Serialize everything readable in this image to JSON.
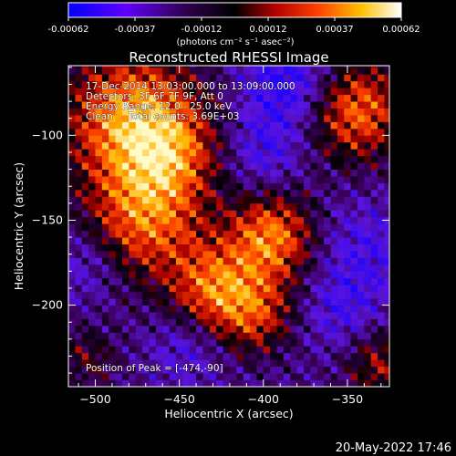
{
  "colorbar": {
    "ticks": [
      "-0.00062",
      "-0.00037",
      "-0.00012",
      "0.00012",
      "0.00037",
      "0.00062"
    ],
    "unit_label": "(photons cm⁻² s⁻¹ asec⁻²)"
  },
  "chart_data": {
    "type": "heatmap",
    "title": "Reconstructed RHESSI Image",
    "xlabel": "Heliocentric X (arcsec)",
    "ylabel": "Heliocentric Y (arcsec)",
    "xlim": [
      -516,
      -325
    ],
    "ylim": [
      -248,
      -59
    ],
    "xticks": [
      -500,
      -450,
      -400,
      -350
    ],
    "yticks": [
      -100,
      -150,
      -200
    ],
    "xtick_labels": [
      "−500",
      "−450",
      "−400",
      "−350"
    ],
    "ytick_labels": [
      "−100",
      "−150",
      "−200"
    ],
    "zlim": [
      -0.00062,
      0.00062
    ],
    "colormap": [
      "#0000ff",
      "#7a00ff",
      "#000000",
      "#c00000",
      "#ff6000",
      "#ffd000",
      "#ffffff"
    ],
    "pixel_size_arcsec": 4,
    "blobs": [
      {
        "x": -478,
        "y": -90,
        "r": 40,
        "amp": 1.0
      },
      {
        "x": -455,
        "y": -110,
        "r": 28,
        "amp": 0.5
      },
      {
        "x": -470,
        "y": -150,
        "r": 35,
        "amp": 0.8
      },
      {
        "x": -395,
        "y": -160,
        "r": 26,
        "amp": 0.9
      },
      {
        "x": -430,
        "y": -190,
        "r": 26,
        "amp": 0.75
      },
      {
        "x": -405,
        "y": -205,
        "r": 24,
        "amp": 0.6
      },
      {
        "x": -345,
        "y": -85,
        "r": 30,
        "amp": 0.85
      },
      {
        "x": -330,
        "y": -235,
        "r": 22,
        "amp": 0.5
      },
      {
        "x": -505,
        "y": -230,
        "r": 18,
        "amp": 0.35
      }
    ],
    "dips": [
      {
        "x": -385,
        "y": -70,
        "r": 28,
        "amp": 1.0
      },
      {
        "x": -400,
        "y": -110,
        "r": 22,
        "amp": 0.6
      },
      {
        "x": -340,
        "y": -170,
        "r": 30,
        "amp": 0.6
      },
      {
        "x": -355,
        "y": -205,
        "r": 22,
        "amp": 0.5
      },
      {
        "x": -445,
        "y": -225,
        "r": 22,
        "amp": 0.5
      },
      {
        "x": -505,
        "y": -175,
        "r": 22,
        "amp": 0.5
      }
    ]
  },
  "annotations": [
    "17-Dec-2014 13:03:00.000 to 13:09:00.000",
    "Detectors: 3F 6F 7F 9F, Att 0",
    "Energy Range: 12.0 - 25.0 keV",
    "Clean     Total counts: 3.69E+03"
  ],
  "peak_label": "Position of Peak = [-474,-90]",
  "footer_timestamp": "20-May-2022 17:46"
}
